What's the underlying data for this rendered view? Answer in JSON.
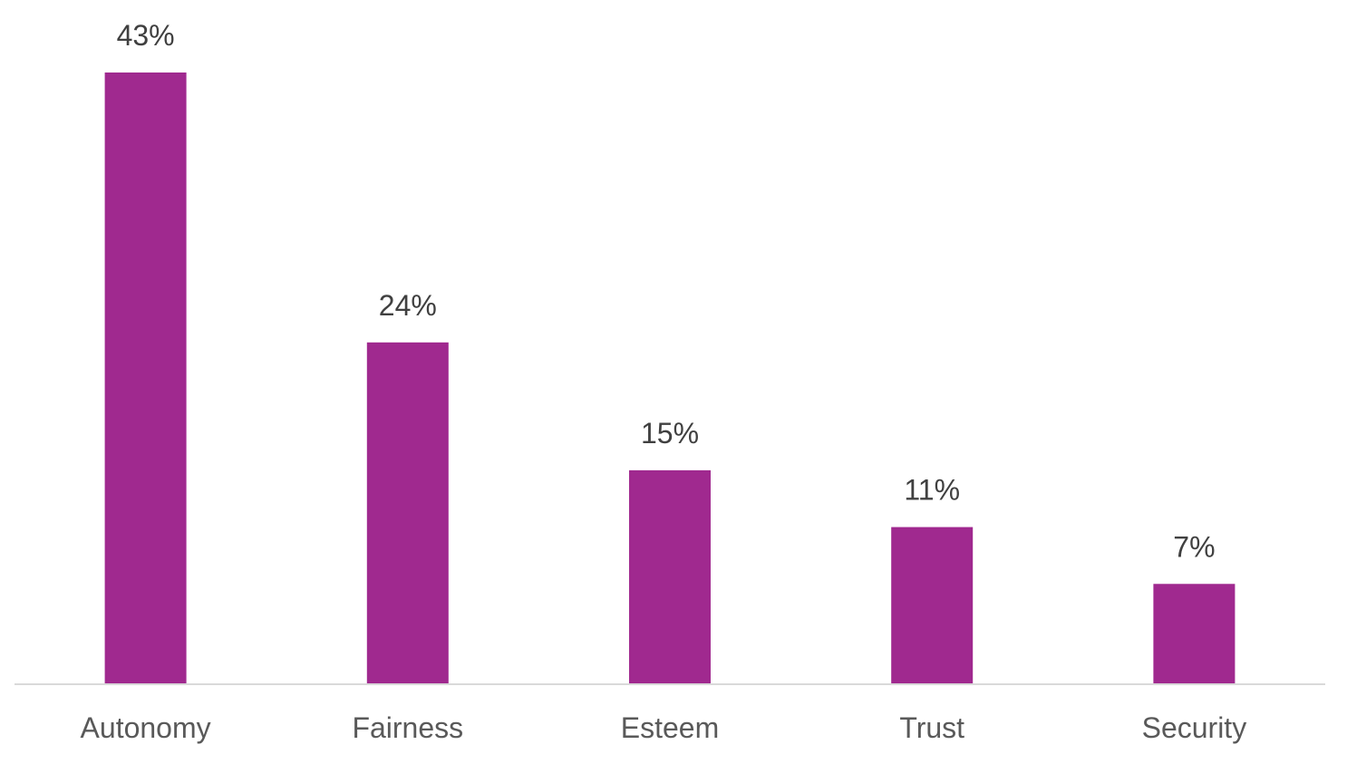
{
  "chart_data": {
    "type": "bar",
    "categories": [
      "Autonomy",
      "Fairness",
      "Esteem",
      "Trust",
      "Security"
    ],
    "values": [
      43,
      24,
      15,
      11,
      7
    ],
    "value_labels": [
      "43%",
      "24%",
      "15%",
      "11%",
      "7%"
    ],
    "unit": "%",
    "title": "",
    "xlabel": "",
    "ylabel": "",
    "ylim": [
      0,
      43
    ],
    "grid": false,
    "legend": "none",
    "bar_color": "#A0298F",
    "axis_color": "#D9D9D9"
  }
}
